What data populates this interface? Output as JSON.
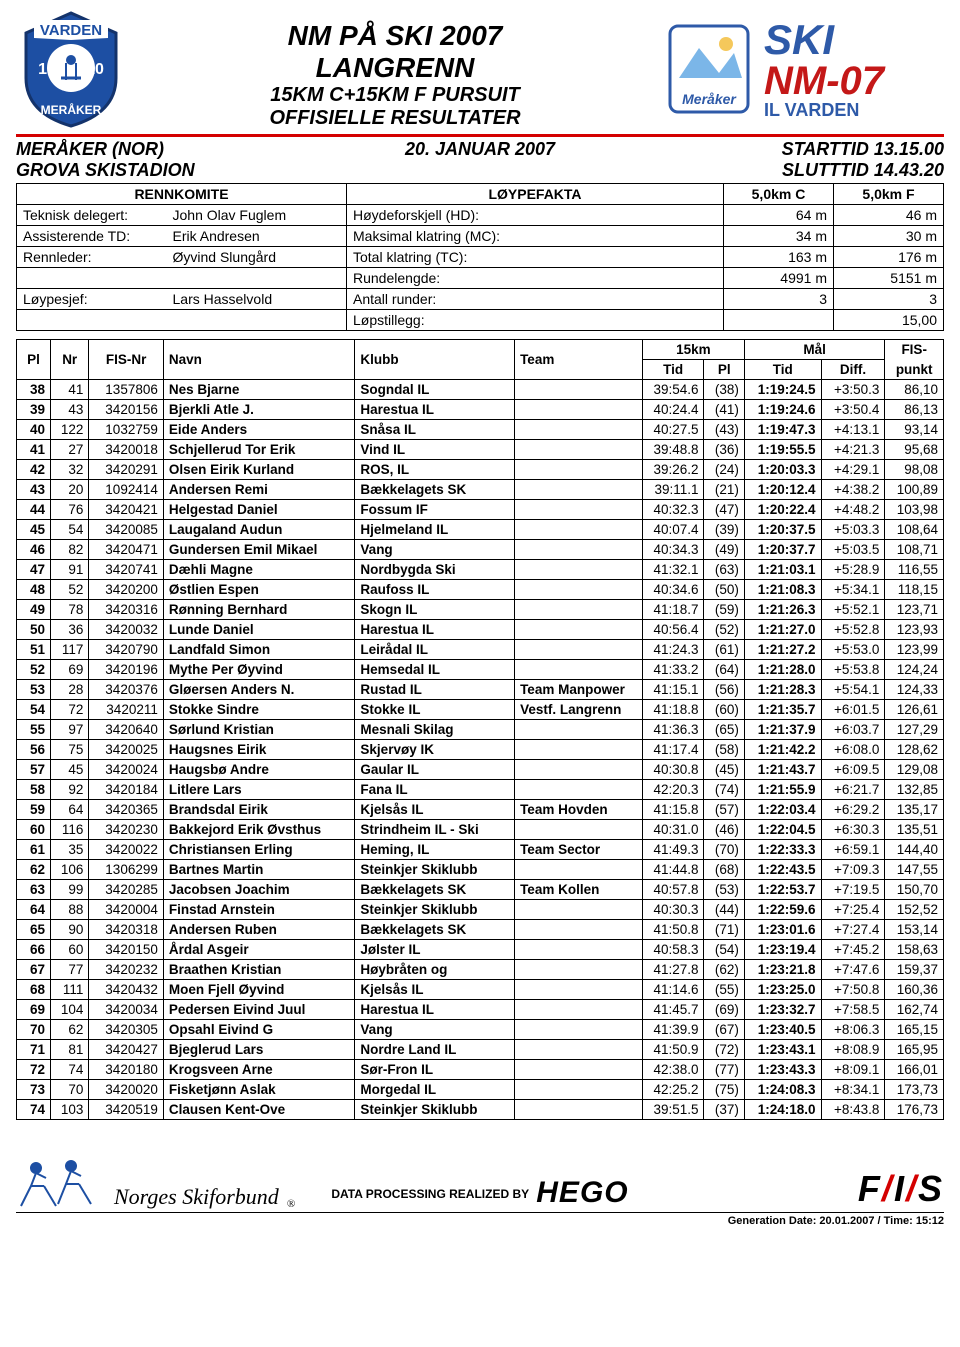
{
  "header": {
    "title1": "NM PÅ SKI 2007",
    "title2": "LANGRENN",
    "title3": "15KM C+15KM F PURSUIT",
    "title4": "OFFISIELLE RESULTATER",
    "logo_left_bg": "#1d4fa3",
    "logo_left_text": "VARDEN",
    "logo_left_year_l": "19",
    "logo_left_year_r": "10",
    "logo_left_bottom": "MERÅKER",
    "logo_right_top": "SKI",
    "logo_right_mid": "NM-07",
    "logo_right_bottom": "IL VARDEN",
    "logo_right_blue": "#2e5aa8",
    "logo_right_red": "#c41818",
    "logo_right_meraker": "Meråker"
  },
  "subheader": {
    "location": "MERÅKER (NOR)",
    "date": "20. JANUAR 2007",
    "start": "STARTTID 13.15.00",
    "venue": "GROVA SKISTADION",
    "end": "SLUTTTID 14.43.20"
  },
  "info_table": {
    "col_headers": [
      "RENNKOMITE",
      "LØYPEFAKTA",
      "5,0km C",
      "5,0km F"
    ],
    "rows": [
      {
        "l1": "Teknisk delegert:",
        "l2": "John Olav Fuglem",
        "m": "Høydeforskjell (HD):",
        "c": "64 m",
        "f": "46 m"
      },
      {
        "l1": "Assisterende TD:",
        "l2": "Erik Andresen",
        "m": "Maksimal klatring (MC):",
        "c": "34 m",
        "f": "30 m"
      },
      {
        "l1": "Rennleder:",
        "l2": "Øyvind Slungård",
        "m": "Total klatring (TC):",
        "c": "163 m",
        "f": "176 m"
      },
      {
        "l1": "",
        "l2": "",
        "m": "Rundelengde:",
        "c": "4991 m",
        "f": "5151 m"
      },
      {
        "l1": "Løypesjef:",
        "l2": "Lars Hasselvold",
        "m": "Antall runder:",
        "c": "3",
        "f": "3"
      },
      {
        "l1": "",
        "l2": "",
        "m": "Løpstillegg:",
        "c": "",
        "f": "15,00"
      }
    ]
  },
  "results_header": {
    "pl": "Pl",
    "nr": "Nr",
    "fisnr": "FIS-Nr",
    "navn": "Navn",
    "klubb": "Klubb",
    "team": "Team",
    "g15": "15km",
    "mal": "Mål",
    "fis": "FIS-",
    "tid": "Tid",
    "plh": "Pl",
    "diff": "Diff.",
    "punkt": "punkt"
  },
  "rows": [
    {
      "pl": "38",
      "nr": "41",
      "fis": "1357806",
      "navn": "Nes Bjarne",
      "klubb": "Sogndal IL",
      "team": "",
      "t15": "39:54.6",
      "p15": "(38)",
      "mal": "1:19:24.5",
      "diff": "+3:50.3",
      "pkt": "86,10"
    },
    {
      "pl": "39",
      "nr": "43",
      "fis": "3420156",
      "navn": "Bjerkli Atle J.",
      "klubb": "Harestua IL",
      "team": "",
      "t15": "40:24.4",
      "p15": "(41)",
      "mal": "1:19:24.6",
      "diff": "+3:50.4",
      "pkt": "86,13"
    },
    {
      "pl": "40",
      "nr": "122",
      "fis": "1032759",
      "navn": "Eide Anders",
      "klubb": "Snåsa IL",
      "team": "",
      "t15": "40:27.5",
      "p15": "(43)",
      "mal": "1:19:47.3",
      "diff": "+4:13.1",
      "pkt": "93,14"
    },
    {
      "pl": "41",
      "nr": "27",
      "fis": "3420018",
      "navn": "Schjellerud Tor Erik",
      "klubb": "Vind IL",
      "team": "",
      "t15": "39:48.8",
      "p15": "(36)",
      "mal": "1:19:55.5",
      "diff": "+4:21.3",
      "pkt": "95,68"
    },
    {
      "pl": "42",
      "nr": "32",
      "fis": "3420291",
      "navn": "Olsen Eirik Kurland",
      "klubb": "ROS, IL",
      "team": "",
      "t15": "39:26.2",
      "p15": "(24)",
      "mal": "1:20:03.3",
      "diff": "+4:29.1",
      "pkt": "98,08"
    },
    {
      "pl": "43",
      "nr": "20",
      "fis": "1092414",
      "navn": "Andersen Remi",
      "klubb": "Bækkelagets SK",
      "team": "",
      "t15": "39:11.1",
      "p15": "(21)",
      "mal": "1:20:12.4",
      "diff": "+4:38.2",
      "pkt": "100,89"
    },
    {
      "pl": "44",
      "nr": "76",
      "fis": "3420421",
      "navn": "Helgestad Daniel",
      "klubb": "Fossum IF",
      "team": "",
      "t15": "40:32.3",
      "p15": "(47)",
      "mal": "1:20:22.4",
      "diff": "+4:48.2",
      "pkt": "103,98"
    },
    {
      "pl": "45",
      "nr": "54",
      "fis": "3420085",
      "navn": "Laugaland Audun",
      "klubb": "Hjelmeland IL",
      "team": "",
      "t15": "40:07.4",
      "p15": "(39)",
      "mal": "1:20:37.5",
      "diff": "+5:03.3",
      "pkt": "108,64"
    },
    {
      "pl": "46",
      "nr": "82",
      "fis": "3420471",
      "navn": "Gundersen Emil Mikael",
      "klubb": "Vang",
      "team": "",
      "t15": "40:34.3",
      "p15": "(49)",
      "mal": "1:20:37.7",
      "diff": "+5:03.5",
      "pkt": "108,71"
    },
    {
      "pl": "47",
      "nr": "91",
      "fis": "3420741",
      "navn": "Dæhli Magne",
      "klubb": "Nordbygda Ski",
      "team": "",
      "t15": "41:32.1",
      "p15": "(63)",
      "mal": "1:21:03.1",
      "diff": "+5:28.9",
      "pkt": "116,55"
    },
    {
      "pl": "48",
      "nr": "52",
      "fis": "3420200",
      "navn": "Østlien Espen",
      "klubb": "Raufoss IL",
      "team": "",
      "t15": "40:34.6",
      "p15": "(50)",
      "mal": "1:21:08.3",
      "diff": "+5:34.1",
      "pkt": "118,15"
    },
    {
      "pl": "49",
      "nr": "78",
      "fis": "3420316",
      "navn": "Rønning Bernhard",
      "klubb": "Skogn IL",
      "team": "",
      "t15": "41:18.7",
      "p15": "(59)",
      "mal": "1:21:26.3",
      "diff": "+5:52.1",
      "pkt": "123,71"
    },
    {
      "pl": "50",
      "nr": "36",
      "fis": "3420032",
      "navn": "Lunde Daniel",
      "klubb": "Harestua IL",
      "team": "",
      "t15": "40:56.4",
      "p15": "(52)",
      "mal": "1:21:27.0",
      "diff": "+5:52.8",
      "pkt": "123,93"
    },
    {
      "pl": "51",
      "nr": "117",
      "fis": "3420790",
      "navn": "Landfald Simon",
      "klubb": "Leirådal IL",
      "team": "",
      "t15": "41:24.3",
      "p15": "(61)",
      "mal": "1:21:27.2",
      "diff": "+5:53.0",
      "pkt": "123,99"
    },
    {
      "pl": "52",
      "nr": "69",
      "fis": "3420196",
      "navn": "Mythe Per Øyvind",
      "klubb": "Hemsedal IL",
      "team": "",
      "t15": "41:33.2",
      "p15": "(64)",
      "mal": "1:21:28.0",
      "diff": "+5:53.8",
      "pkt": "124,24"
    },
    {
      "pl": "53",
      "nr": "28",
      "fis": "3420376",
      "navn": "Gløersen Anders N.",
      "klubb": "Rustad IL",
      "team": "Team Manpower",
      "t15": "41:15.1",
      "p15": "(56)",
      "mal": "1:21:28.3",
      "diff": "+5:54.1",
      "pkt": "124,33"
    },
    {
      "pl": "54",
      "nr": "72",
      "fis": "3420211",
      "navn": "Stokke Sindre",
      "klubb": "Stokke IL",
      "team": "Vestf. Langrenn",
      "t15": "41:18.8",
      "p15": "(60)",
      "mal": "1:21:35.7",
      "diff": "+6:01.5",
      "pkt": "126,61"
    },
    {
      "pl": "55",
      "nr": "97",
      "fis": "3420640",
      "navn": "Sørlund Kristian",
      "klubb": "Mesnali Skilag",
      "team": "",
      "t15": "41:36.3",
      "p15": "(65)",
      "mal": "1:21:37.9",
      "diff": "+6:03.7",
      "pkt": "127,29"
    },
    {
      "pl": "56",
      "nr": "75",
      "fis": "3420025",
      "navn": "Haugsnes Eirik",
      "klubb": "Skjervøy IK",
      "team": "",
      "t15": "41:17.4",
      "p15": "(58)",
      "mal": "1:21:42.2",
      "diff": "+6:08.0",
      "pkt": "128,62"
    },
    {
      "pl": "57",
      "nr": "45",
      "fis": "3420024",
      "navn": "Haugsbø Andre",
      "klubb": "Gaular IL",
      "team": "",
      "t15": "40:30.8",
      "p15": "(45)",
      "mal": "1:21:43.7",
      "diff": "+6:09.5",
      "pkt": "129,08"
    },
    {
      "pl": "58",
      "nr": "92",
      "fis": "3420184",
      "navn": "Litlere Lars",
      "klubb": "Fana IL",
      "team": "",
      "t15": "42:20.3",
      "p15": "(74)",
      "mal": "1:21:55.9",
      "diff": "+6:21.7",
      "pkt": "132,85"
    },
    {
      "pl": "59",
      "nr": "64",
      "fis": "3420365",
      "navn": "Brandsdal Eirik",
      "klubb": "Kjelsås IL",
      "team": "Team Hovden",
      "t15": "41:15.8",
      "p15": "(57)",
      "mal": "1:22:03.4",
      "diff": "+6:29.2",
      "pkt": "135,17"
    },
    {
      "pl": "60",
      "nr": "116",
      "fis": "3420230",
      "navn": "Bakkejord Erik Øvsthus",
      "klubb": "Strindheim IL - Ski",
      "team": "",
      "t15": "40:31.0",
      "p15": "(46)",
      "mal": "1:22:04.5",
      "diff": "+6:30.3",
      "pkt": "135,51"
    },
    {
      "pl": "61",
      "nr": "35",
      "fis": "3420022",
      "navn": "Christiansen Erling",
      "klubb": "Heming, IL",
      "team": "Team Sector",
      "t15": "41:49.3",
      "p15": "(70)",
      "mal": "1:22:33.3",
      "diff": "+6:59.1",
      "pkt": "144,40"
    },
    {
      "pl": "62",
      "nr": "106",
      "fis": "1306299",
      "navn": "Bartnes Martin",
      "klubb": "Steinkjer Skiklubb",
      "team": "",
      "t15": "41:44.8",
      "p15": "(68)",
      "mal": "1:22:43.5",
      "diff": "+7:09.3",
      "pkt": "147,55"
    },
    {
      "pl": "63",
      "nr": "99",
      "fis": "3420285",
      "navn": "Jacobsen Joachim",
      "klubb": "Bækkelagets SK",
      "team": "Team Kollen",
      "t15": "40:57.8",
      "p15": "(53)",
      "mal": "1:22:53.7",
      "diff": "+7:19.5",
      "pkt": "150,70"
    },
    {
      "pl": "64",
      "nr": "88",
      "fis": "3420004",
      "navn": "Finstad Arnstein",
      "klubb": "Steinkjer Skiklubb",
      "team": "",
      "t15": "40:30.3",
      "p15": "(44)",
      "mal": "1:22:59.6",
      "diff": "+7:25.4",
      "pkt": "152,52"
    },
    {
      "pl": "65",
      "nr": "90",
      "fis": "3420318",
      "navn": "Andersen Ruben",
      "klubb": "Bækkelagets SK",
      "team": "",
      "t15": "41:50.8",
      "p15": "(71)",
      "mal": "1:23:01.6",
      "diff": "+7:27.4",
      "pkt": "153,14"
    },
    {
      "pl": "66",
      "nr": "60",
      "fis": "3420150",
      "navn": "Årdal Asgeir",
      "klubb": "Jølster IL",
      "team": "",
      "t15": "40:58.3",
      "p15": "(54)",
      "mal": "1:23:19.4",
      "diff": "+7:45.2",
      "pkt": "158,63"
    },
    {
      "pl": "67",
      "nr": "77",
      "fis": "3420232",
      "navn": "Braathen Kristian",
      "klubb": "Høybråten og",
      "team": "",
      "t15": "41:27.8",
      "p15": "(62)",
      "mal": "1:23:21.8",
      "diff": "+7:47.6",
      "pkt": "159,37"
    },
    {
      "pl": "68",
      "nr": "111",
      "fis": "3420432",
      "navn": "Moen Fjell Øyvind",
      "klubb": "Kjelsås IL",
      "team": "",
      "t15": "41:14.6",
      "p15": "(55)",
      "mal": "1:23:25.0",
      "diff": "+7:50.8",
      "pkt": "160,36"
    },
    {
      "pl": "69",
      "nr": "104",
      "fis": "3420034",
      "navn": "Pedersen Eivind Juul",
      "klubb": "Harestua IL",
      "team": "",
      "t15": "41:45.7",
      "p15": "(69)",
      "mal": "1:23:32.7",
      "diff": "+7:58.5",
      "pkt": "162,74"
    },
    {
      "pl": "70",
      "nr": "62",
      "fis": "3420305",
      "navn": "Opsahl Eivind G",
      "klubb": "Vang",
      "team": "",
      "t15": "41:39.9",
      "p15": "(67)",
      "mal": "1:23:40.5",
      "diff": "+8:06.3",
      "pkt": "165,15"
    },
    {
      "pl": "71",
      "nr": "81",
      "fis": "3420427",
      "navn": "Bjeglerud Lars",
      "klubb": "Nordre Land IL",
      "team": "",
      "t15": "41:50.9",
      "p15": "(72)",
      "mal": "1:23:43.1",
      "diff": "+8:08.9",
      "pkt": "165,95"
    },
    {
      "pl": "72",
      "nr": "74",
      "fis": "3420180",
      "navn": "Krogsveen Arne",
      "klubb": "Sør-Fron IL",
      "team": "",
      "t15": "42:38.0",
      "p15": "(77)",
      "mal": "1:23:43.3",
      "diff": "+8:09.1",
      "pkt": "166,01"
    },
    {
      "pl": "73",
      "nr": "70",
      "fis": "3420020",
      "navn": "Fisketjønn Aslak",
      "klubb": "Morgedal IL",
      "team": "",
      "t15": "42:25.2",
      "p15": "(75)",
      "mal": "1:24:08.3",
      "diff": "+8:34.1",
      "pkt": "173,73"
    },
    {
      "pl": "74",
      "nr": "103",
      "fis": "3420519",
      "navn": "Clausen Kent-Ove",
      "klubb": "Steinkjer Skiklubb",
      "team": "",
      "t15": "39:51.5",
      "p15": "(37)",
      "mal": "1:24:18.0",
      "diff": "+8:43.8",
      "pkt": "176,73"
    }
  ],
  "footer": {
    "nsf": "Norges Skiforbund",
    "processing": "DATA PROCESSING REALIZED BY",
    "hego": "HEGO",
    "fis_f": "F",
    "fis_i": "I",
    "fis_s": "S",
    "generation": "Generation Date: 20.01.2007 / Time: 15:12"
  },
  "style": {
    "red": "#d40000",
    "blue": "#1d4fa3"
  }
}
